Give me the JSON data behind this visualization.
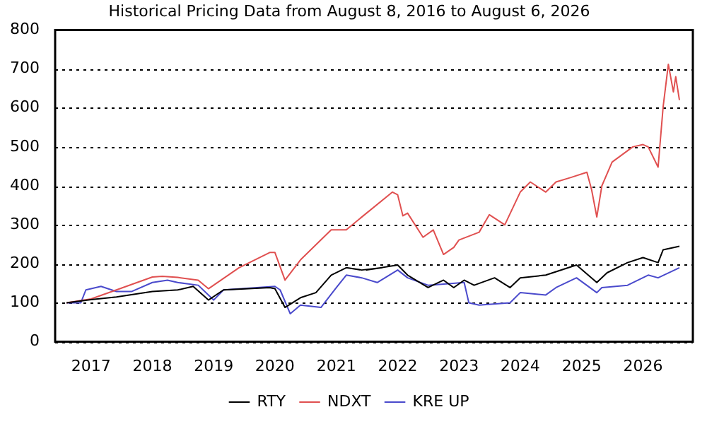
{
  "chart_data": {
    "type": "line",
    "title": "Historical Pricing Data from August 8, 2016 to August 6, 2026",
    "xlim": [
      "2016-06-01",
      "2026-10-25"
    ],
    "xticks": [
      "2017",
      "2018",
      "2019",
      "2020",
      "2021",
      "2022",
      "2023",
      "2024",
      "2025",
      "2026"
    ],
    "ylim": [
      0,
      800
    ],
    "yticks": [
      0,
      100,
      200,
      300,
      400,
      500,
      600,
      700,
      800
    ],
    "grid": "y",
    "legend": "bottom",
    "line_style": "solid",
    "marker": "none",
    "series": [
      {
        "name": "RTY",
        "color": "#000000",
        "x": [
          "2016-08-08",
          "2017-01",
          "2017-06",
          "2018-01",
          "2018-06",
          "2018-09",
          "2018-12",
          "2019-03",
          "2019-12",
          "2020-01",
          "2020-03",
          "2020-06",
          "2020-09",
          "2020-12",
          "2021-03",
          "2021-06",
          "2021-10",
          "2021-06-30",
          "2022-01",
          "2022-03",
          "2022-07",
          "2022-10",
          "2022-12",
          "2023-02",
          "2023-04",
          "2023-08",
          "2023-11",
          "2024-01",
          "2024-06",
          "2024-12",
          "2025-04",
          "2025-06",
          "2025-10",
          "2026-01",
          "2026-04",
          "2026-05",
          "2026-08-06"
        ],
        "values": [
          100,
          108,
          115,
          129,
          133,
          142,
          107,
          133,
          139,
          136,
          88,
          113,
          126,
          171,
          190,
          184,
          190,
          184,
          197,
          171,
          139,
          158,
          139,
          158,
          145,
          164,
          139,
          164,
          171,
          197,
          152,
          177,
          203,
          216,
          203,
          236,
          245
        ]
      },
      {
        "name": "NDXT",
        "color": "#e05050",
        "x": [
          "2016-08-08",
          "2017-01",
          "2017-06",
          "2018-01",
          "2018-03",
          "2018-06",
          "2018-10",
          "2018-12",
          "2019-06",
          "2019-12",
          "2020-01",
          "2020-03",
          "2020-06",
          "2020-12",
          "2021-03",
          "2021-06",
          "2021-12",
          "2022-01",
          "2022-02",
          "2022-03",
          "2022-06",
          "2022-08",
          "2022-10",
          "2022-12",
          "2023-01",
          "2023-05",
          "2023-07",
          "2023-10",
          "2024-01",
          "2024-03",
          "2024-06",
          "2024-08",
          "2024-11",
          "2025-02",
          "2025-03",
          "2025-04",
          "2025-05",
          "2025-07",
          "2025-11",
          "2026-01",
          "2026-02",
          "2026-04",
          "2026-05",
          "2026-06",
          "2026-07",
          "2026-07-15",
          "2026-08-06"
        ],
        "values": [
          100,
          110,
          133,
          166,
          168,
          165,
          158,
          136,
          190,
          229,
          229,
          158,
          210,
          287,
          287,
          320,
          384,
          377,
          323,
          330,
          268,
          287,
          224,
          242,
          261,
          281,
          326,
          300,
          384,
          410,
          384,
          410,
          422,
          435,
          390,
          320,
          400,
          461,
          500,
          506,
          500,
          448,
          603,
          712,
          641,
          680,
          620
        ]
      },
      {
        "name": "KRE UP",
        "color": "#4a4acc",
        "x": [
          "2016-08-08",
          "2016-11",
          "2016-12",
          "2017-03",
          "2017-06",
          "2017-09",
          "2018-01",
          "2018-04",
          "2018-06",
          "2018-10",
          "2019-01",
          "2019-03",
          "2020-01",
          "2020-02",
          "2020-04",
          "2020-06",
          "2020-10",
          "2021-01",
          "2021-03",
          "2021-06",
          "2021-09",
          "2022-01",
          "2022-03",
          "2022-07",
          "2023-02",
          "2023-03",
          "2023-05",
          "2023-11",
          "2024-01",
          "2024-06",
          "2024-08",
          "2024-12",
          "2025-04",
          "2025-05",
          "2025-10",
          "2026-02",
          "2026-04",
          "2026-08-06"
        ],
        "values": [
          100,
          100,
          133,
          142,
          129,
          129,
          152,
          158,
          152,
          145,
          107,
          133,
          142,
          133,
          72,
          94,
          88,
          139,
          171,
          164,
          152,
          184,
          164,
          145,
          152,
          100,
          94,
          100,
          126,
          120,
          139,
          164,
          126,
          139,
          145,
          171,
          164,
          190
        ]
      }
    ]
  }
}
